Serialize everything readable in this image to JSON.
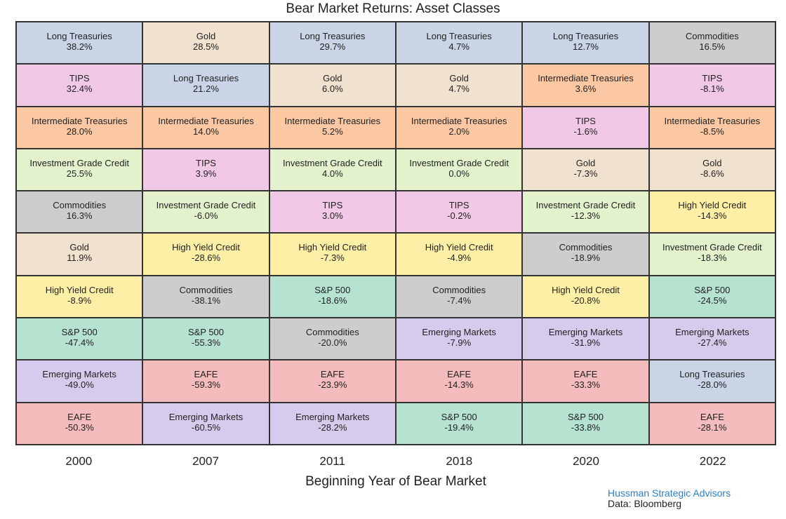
{
  "chart_data": {
    "type": "table",
    "title": "Bear Market Returns: Asset Classes",
    "xlabel": "Beginning Year of Bear Market",
    "colors": {
      "Long Treasuries": "#c9d4e6",
      "Gold": "#f1e1cf",
      "TIPS": "#f1c8e6",
      "Intermediate Treasuries": "#fbc8a3",
      "Investment Grade Credit": "#e3f2cc",
      "Commodities": "#cdcdcd",
      "High Yield Credit": "#fdf0a6",
      "S&P 500": "#b5e3cf",
      "Emerging Markets": "#d6cbec",
      "EAFE": "#f4bcbc"
    },
    "columns": [
      {
        "year": "2000",
        "entries": [
          {
            "asset": "Long Treasuries",
            "value": "38.2%"
          },
          {
            "asset": "TIPS",
            "value": "32.4%"
          },
          {
            "asset": "Intermediate Treasuries",
            "value": "28.0%"
          },
          {
            "asset": "Investment Grade Credit",
            "value": "25.5%"
          },
          {
            "asset": "Commodities",
            "value": "16.3%"
          },
          {
            "asset": "Gold",
            "value": "11.9%"
          },
          {
            "asset": "High Yield Credit",
            "value": "-8.9%"
          },
          {
            "asset": "S&P 500",
            "value": "-47.4%"
          },
          {
            "asset": "Emerging Markets",
            "value": "-49.0%"
          },
          {
            "asset": "EAFE",
            "value": "-50.3%"
          }
        ]
      },
      {
        "year": "2007",
        "entries": [
          {
            "asset": "Gold",
            "value": "28.5%"
          },
          {
            "asset": "Long Treasuries",
            "value": "21.2%"
          },
          {
            "asset": "Intermediate Treasuries",
            "value": "14.0%"
          },
          {
            "asset": "TIPS",
            "value": "3.9%"
          },
          {
            "asset": "Investment Grade Credit",
            "value": "-6.0%"
          },
          {
            "asset": "High Yield Credit",
            "value": "-28.6%"
          },
          {
            "asset": "Commodities",
            "value": "-38.1%"
          },
          {
            "asset": "S&P 500",
            "value": "-55.3%"
          },
          {
            "asset": "EAFE",
            "value": "-59.3%"
          },
          {
            "asset": "Emerging Markets",
            "value": "-60.5%"
          }
        ]
      },
      {
        "year": "2011",
        "entries": [
          {
            "asset": "Long Treasuries",
            "value": "29.7%"
          },
          {
            "asset": "Gold",
            "value": "6.0%"
          },
          {
            "asset": "Intermediate Treasuries",
            "value": "5.2%"
          },
          {
            "asset": "Investment Grade Credit",
            "value": "4.0%"
          },
          {
            "asset": "TIPS",
            "value": "3.0%"
          },
          {
            "asset": "High Yield Credit",
            "value": "-7.3%"
          },
          {
            "asset": "S&P 500",
            "value": "-18.6%"
          },
          {
            "asset": "Commodities",
            "value": "-20.0%"
          },
          {
            "asset": "EAFE",
            "value": "-23.9%"
          },
          {
            "asset": "Emerging Markets",
            "value": "-28.2%"
          }
        ]
      },
      {
        "year": "2018",
        "entries": [
          {
            "asset": "Long Treasuries",
            "value": "4.7%"
          },
          {
            "asset": "Gold",
            "value": "4.7%"
          },
          {
            "asset": "Intermediate Treasuries",
            "value": "2.0%"
          },
          {
            "asset": "Investment Grade Credit",
            "value": "0.0%"
          },
          {
            "asset": "TIPS",
            "value": "-0.2%"
          },
          {
            "asset": "High Yield Credit",
            "value": "-4.9%"
          },
          {
            "asset": "Commodities",
            "value": "-7.4%"
          },
          {
            "asset": "Emerging Markets",
            "value": "-7.9%"
          },
          {
            "asset": "EAFE",
            "value": "-14.3%"
          },
          {
            "asset": "S&P 500",
            "value": "-19.4%"
          }
        ]
      },
      {
        "year": "2020",
        "entries": [
          {
            "asset": "Long Treasuries",
            "value": "12.7%"
          },
          {
            "asset": "Intermediate Treasuries",
            "value": "3.6%"
          },
          {
            "asset": "TIPS",
            "value": "-1.6%"
          },
          {
            "asset": "Gold",
            "value": "-7.3%"
          },
          {
            "asset": "Investment Grade Credit",
            "value": "-12.3%"
          },
          {
            "asset": "Commodities",
            "value": "-18.9%"
          },
          {
            "asset": "High Yield Credit",
            "value": "-20.8%"
          },
          {
            "asset": "Emerging Markets",
            "value": "-31.9%"
          },
          {
            "asset": "EAFE",
            "value": "-33.3%"
          },
          {
            "asset": "S&P 500",
            "value": "-33.8%"
          }
        ]
      },
      {
        "year": "2022",
        "entries": [
          {
            "asset": "Commodities",
            "value": "16.5%"
          },
          {
            "asset": "TIPS",
            "value": "-8.1%"
          },
          {
            "asset": "Intermediate Treasuries",
            "value": "-8.5%"
          },
          {
            "asset": "Gold",
            "value": "-8.6%"
          },
          {
            "asset": "High Yield Credit",
            "value": "-14.3%"
          },
          {
            "asset": "Investment Grade Credit",
            "value": "-18.3%"
          },
          {
            "asset": "S&P 500",
            "value": "-24.5%"
          },
          {
            "asset": "Emerging Markets",
            "value": "-27.4%"
          },
          {
            "asset": "Long Treasuries",
            "value": "-28.0%"
          },
          {
            "asset": "EAFE",
            "value": "-28.1%"
          }
        ]
      }
    ]
  },
  "credit": {
    "org": "Hussman Strategic Advisors",
    "source": "Data: Bloomberg"
  }
}
